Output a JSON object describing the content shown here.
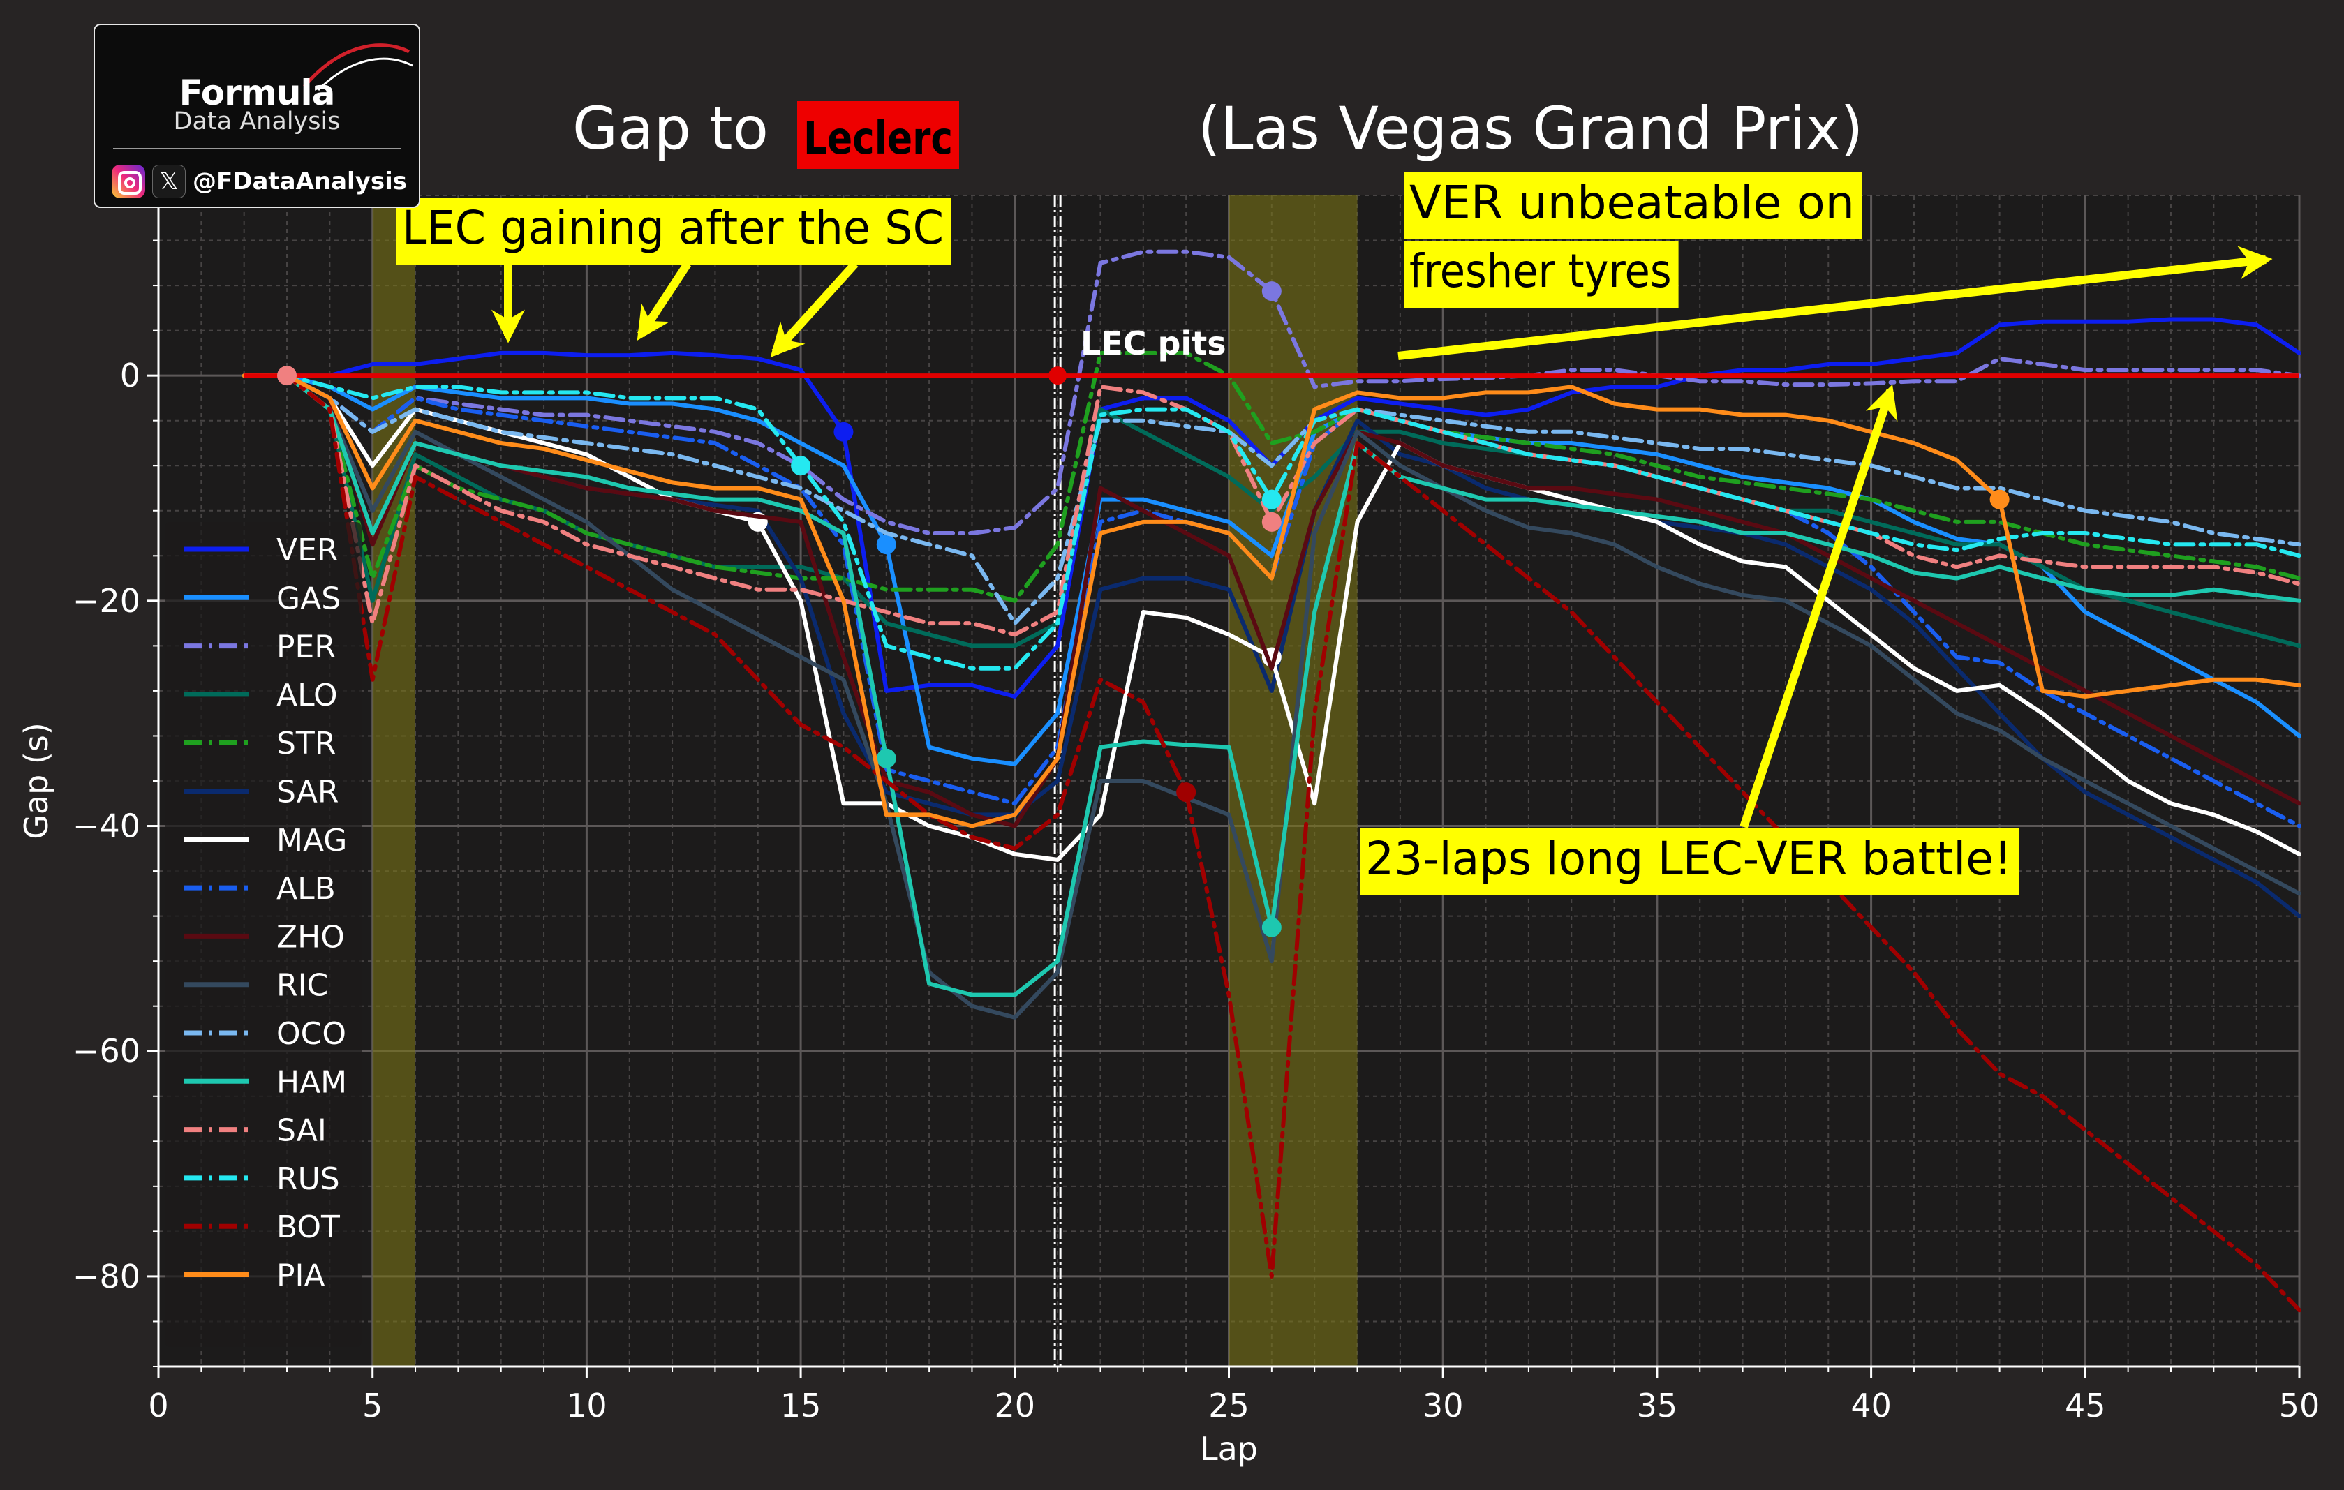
{
  "logo": {
    "title": "Formula",
    "subtitle": "Data Analysis",
    "handle": "@FDataAnalysis",
    "icons": [
      "instagram-icon",
      "x-icon"
    ]
  },
  "chart_data": {
    "type": "line",
    "title_prefix": "Gap to",
    "title_highlight": "Leclerc",
    "title_suffix": "(Las Vegas Grand Prix)",
    "xlabel": "Lap",
    "ylabel": "Gap (s)",
    "xlim": [
      0,
      50
    ],
    "ylim": [
      -88,
      16
    ],
    "xticks": [
      0,
      5,
      10,
      15,
      20,
      25,
      30,
      35,
      40,
      45,
      50
    ],
    "yticks": [
      0,
      -20,
      -40,
      -60,
      -80
    ],
    "grid": true,
    "legend": "left",
    "reference_line": {
      "label": "LEC",
      "value": 0,
      "color": "#e00000"
    },
    "shaded_laps": [
      [
        5,
        6
      ],
      [
        25,
        28
      ]
    ],
    "pit_line_lap": 21,
    "pit_label": "LEC pits",
    "annotations": [
      {
        "text": "LEC gaining after the SC"
      },
      {
        "text": "VER unbeatable on\nfresher tyres"
      },
      {
        "text": "23-laps long LEC-VER battle!"
      }
    ],
    "x": [
      2,
      3,
      4,
      5,
      6,
      7,
      8,
      9,
      10,
      11,
      12,
      13,
      14,
      15,
      16,
      17,
      18,
      19,
      20,
      21,
      22,
      23,
      24,
      25,
      26,
      27,
      28,
      29,
      30,
      31,
      32,
      33,
      34,
      35,
      36,
      37,
      38,
      39,
      40,
      41,
      42,
      43,
      44,
      45,
      46,
      47,
      48,
      49,
      50
    ],
    "series": [
      {
        "name": "VER",
        "color": "#0d1ef0",
        "dash": "solid",
        "pits": [
          16
        ],
        "values": [
          0,
          0,
          0,
          1,
          1,
          1.5,
          2,
          2,
          1.8,
          1.8,
          2,
          1.8,
          1.5,
          0.5,
          -5,
          -28,
          -27.5,
          -27.5,
          -28.5,
          -24,
          -3,
          -2,
          -2,
          -4,
          -8,
          -4,
          -2,
          -2.5,
          -3,
          -3.5,
          -3,
          -1.5,
          -1,
          -1,
          0,
          0.5,
          0.5,
          1,
          1,
          1.5,
          2,
          4.5,
          4.8,
          4.8,
          4.8,
          5,
          5,
          4.5,
          2
        ]
      },
      {
        "name": "GAS",
        "color": "#1a8fff",
        "dash": "solid",
        "pits": [
          17
        ],
        "values": [
          0,
          0,
          -1,
          -3,
          -1,
          -1.5,
          -2,
          -2,
          -2,
          -2.5,
          -2.5,
          -3,
          -4,
          -6,
          -8,
          -15,
          -33,
          -34,
          -34.5,
          -30,
          -11,
          -11,
          -12,
          -13,
          -16,
          -5,
          -3,
          -4,
          -5,
          -5.5,
          -6,
          -6,
          -6.5,
          -7,
          -8,
          -9,
          -9.5,
          -10,
          -11,
          -13,
          -14.5,
          -15,
          -17,
          -21,
          -23,
          -25,
          -27,
          -29,
          -32
        ]
      },
      {
        "name": "PER",
        "color": "#7b77e0",
        "dash": "dashdot",
        "pits": [
          26
        ],
        "values": [
          0,
          0,
          -2,
          -5,
          -2,
          -2.5,
          -3,
          -3.5,
          -3.5,
          -4,
          -4.5,
          -5,
          -6,
          -8,
          -11,
          -13,
          -14,
          -14,
          -13.5,
          -10,
          10,
          11,
          11,
          10.5,
          7.5,
          -1,
          -0.5,
          -0.5,
          -0.3,
          -0.2,
          0,
          0.5,
          0.5,
          0,
          -0.5,
          -0.5,
          -0.8,
          -0.8,
          -0.7,
          -0.5,
          -0.5,
          1.5,
          1,
          0.5,
          0.5,
          0.5,
          0.5,
          0.5,
          0
        ]
      },
      {
        "name": "ALO",
        "color": "#006b5a",
        "dash": "solid",
        "pits": [],
        "values": [
          0,
          0,
          -3,
          -20,
          -7,
          -9,
          -11,
          -12,
          -14,
          -15,
          -16,
          -17,
          -17,
          -17,
          -18,
          -22,
          -23,
          -24,
          -24,
          -22,
          -3,
          -5,
          -7,
          -9,
          -12,
          -9,
          -5,
          -5,
          -6,
          -6.5,
          -7,
          -7.5,
          -8,
          -9,
          -10,
          -11,
          -12,
          -12,
          -13,
          -14,
          -15,
          -15,
          -17,
          -19,
          -20,
          -21,
          -22,
          -23,
          -24
        ]
      },
      {
        "name": "STR",
        "color": "#1fa01f",
        "dash": "dashdot",
        "pits": [],
        "values": [
          0,
          0,
          -3,
          -18,
          -8,
          -10,
          -11,
          -12,
          -14,
          -15,
          -16,
          -17,
          -17.5,
          -18,
          -18,
          -19,
          -19,
          -19,
          -20,
          -15,
          2,
          2,
          2,
          0,
          -6,
          -5,
          -3,
          -4,
          -5,
          -5.5,
          -6,
          -6.5,
          -7,
          -8,
          -9,
          -9.5,
          -10,
          -10.5,
          -11,
          -12,
          -13,
          -13,
          -14,
          -15,
          -15.5,
          -16,
          -16.5,
          -17,
          -18
        ]
      },
      {
        "name": "SAR",
        "color": "#0a2a6e",
        "dash": "solid",
        "pits": [],
        "values": [
          0,
          0,
          -3,
          -14,
          -6,
          -7,
          -8,
          -9,
          -10,
          -10.5,
          -11,
          -11.5,
          -12,
          -18,
          -30,
          -37,
          -38,
          -39,
          -39,
          -36,
          -19,
          -18,
          -18,
          -19,
          -28,
          -12,
          -4,
          -7,
          -8,
          -10,
          -11,
          -11.5,
          -12,
          -13,
          -13.5,
          -14,
          -15,
          -17,
          -19,
          -22,
          -26,
          -30,
          -34,
          -37,
          -39,
          -41,
          -43,
          -45,
          -48
        ]
      },
      {
        "name": "MAG",
        "color": "#ffffff",
        "dash": "solid",
        "pits": [
          14,
          26
        ],
        "values": [
          0,
          0,
          -2,
          -8,
          -3,
          -4,
          -5,
          -6,
          -7,
          -9,
          -11,
          -12,
          -13,
          -20,
          -38,
          -38,
          -40,
          -41,
          -42.5,
          -43,
          -39,
          -21,
          -21.5,
          -23,
          -25,
          -38,
          -13,
          -6,
          -8,
          -9,
          -10,
          -11,
          -12,
          -13,
          -15,
          -16.5,
          -17,
          -20,
          -23,
          -26,
          -28,
          -27.5,
          -30,
          -33,
          -36,
          -38,
          -39,
          -40.5,
          -42.5
        ]
      },
      {
        "name": "ALB",
        "color": "#1a5ef0",
        "dash": "dashdot",
        "pits": [],
        "values": [
          0,
          0,
          -2,
          -5,
          -2,
          -3,
          -3.5,
          -4,
          -4.5,
          -5,
          -5.5,
          -6,
          -8,
          -10,
          -15,
          -35,
          -36,
          -37,
          -38,
          -33,
          -13,
          -12,
          -13,
          -14,
          -18,
          -6,
          -3,
          -4,
          -5,
          -6,
          -7,
          -7.5,
          -8,
          -9,
          -10,
          -11,
          -12,
          -14,
          -17,
          -21,
          -25,
          -25.5,
          -28,
          -30,
          -32,
          -34,
          -36,
          -38,
          -40
        ]
      },
      {
        "name": "ZHO",
        "color": "#5a0a12",
        "dash": "solid",
        "pits": [],
        "values": [
          0,
          0,
          -2,
          -15,
          -6,
          -7,
          -8,
          -9,
          -10,
          -10.5,
          -11,
          -12,
          -12.5,
          -13,
          -25,
          -36,
          -37,
          -39,
          -40,
          -34,
          -10,
          -12,
          -14,
          -16,
          -26,
          -12,
          -5,
          -6,
          -8,
          -9,
          -10,
          -10,
          -10.5,
          -11,
          -12,
          -13,
          -14,
          -16,
          -18,
          -20,
          -22,
          -24,
          -26,
          -28,
          -30,
          -32,
          -34,
          -36,
          -38
        ]
      },
      {
        "name": "RIC",
        "color": "#34495e",
        "dash": "solid",
        "pits": [],
        "values": [
          0,
          0,
          -3,
          -12,
          -5,
          -7,
          -9,
          -11,
          -13,
          -16,
          -19,
          -21,
          -23,
          -25,
          -27,
          -38,
          -53,
          -56,
          -57,
          -53,
          -36,
          -36,
          -37.5,
          -39,
          -52,
          -14,
          -5,
          -8,
          -10,
          -12,
          -13.5,
          -14,
          -15,
          -17,
          -18.5,
          -19.5,
          -20,
          -22,
          -24,
          -27,
          -30,
          -31.5,
          -34,
          -36,
          -38,
          -40,
          -42,
          -44,
          -46
        ]
      },
      {
        "name": "OCO",
        "color": "#7ab8f0",
        "dash": "dashdot",
        "pits": [],
        "values": [
          0,
          0,
          -2,
          -5,
          -3,
          -4,
          -5,
          -5.5,
          -6,
          -6.5,
          -7,
          -8,
          -9,
          -10,
          -12,
          -14,
          -15,
          -16,
          -22,
          -18,
          -4,
          -4,
          -4.5,
          -5,
          -8,
          -4,
          -3,
          -3.5,
          -4,
          -4.5,
          -5,
          -5,
          -5.5,
          -6,
          -6.5,
          -6.5,
          -7,
          -7.5,
          -8,
          -9,
          -10,
          -10,
          -11,
          -12,
          -12.5,
          -13,
          -14,
          -14.5,
          -15
        ]
      },
      {
        "name": "HAM",
        "color": "#1ec8b0",
        "dash": "solid",
        "pits": [
          17,
          26
        ],
        "values": [
          0,
          0,
          -3,
          -14,
          -6,
          -7,
          -8,
          -8.5,
          -9,
          -10,
          -10.5,
          -11,
          -11,
          -12,
          -14,
          -34,
          -54,
          -55,
          -55,
          -52,
          -33,
          -32.5,
          -32.8,
          -33,
          -49,
          -21,
          -6,
          -9,
          -10,
          -11,
          -11,
          -11.5,
          -12,
          -12.5,
          -13,
          -14,
          -14,
          -15,
          -16,
          -17.5,
          -18,
          -17,
          -18,
          -19,
          -19.5,
          -19.5,
          -19,
          -19.5,
          -20
        ]
      },
      {
        "name": "SAI",
        "color": "#f08080",
        "dash": "dashdot",
        "pits": [
          26
        ],
        "values": [
          0,
          0,
          -3,
          -22,
          -8,
          -10,
          -12,
          -13,
          -15,
          -16,
          -17,
          -18,
          -19,
          -19,
          -20,
          -21,
          -22,
          -22,
          -23,
          -21,
          -1,
          -1.5,
          -3,
          -5,
          -13,
          -6,
          -3,
          -4,
          -5,
          -6,
          -7,
          -7.5,
          -8,
          -9,
          -10,
          -11,
          -12,
          -13,
          -14,
          -16,
          -17,
          -16,
          -16.5,
          -17,
          -17,
          -17,
          -17,
          -17.5,
          -18.5
        ]
      },
      {
        "name": "RUS",
        "color": "#25e8f0",
        "dash": "dashdot",
        "pits": [
          15,
          26
        ],
        "values": [
          0,
          0,
          -1,
          -2,
          -1,
          -1,
          -1.5,
          -1.5,
          -1.5,
          -2,
          -2,
          -2,
          -3,
          -8,
          -13,
          -24,
          -25,
          -26,
          -26,
          -22,
          -3.5,
          -3,
          -3,
          -5,
          -11,
          -4,
          -3,
          -4,
          -5,
          -6,
          -7,
          -7.5,
          -8,
          -9,
          -10,
          -11,
          -12,
          -13,
          -14,
          -15,
          -15.5,
          -14.5,
          -14,
          -14,
          -14.5,
          -15,
          -15,
          -15,
          -16
        ]
      },
      {
        "name": "BOT",
        "color": "#a00000",
        "dash": "dashdot",
        "pits": [
          24
        ],
        "values": [
          0,
          0,
          -3,
          -27,
          -9,
          -11,
          -13,
          -15,
          -17,
          -19,
          -21,
          -23,
          -27,
          -31,
          -33,
          -36,
          -39,
          -41,
          -42,
          -39,
          -27,
          -29,
          -37,
          -55,
          -80,
          -30,
          -6,
          -9,
          -12,
          -15,
          -18,
          -21,
          -25,
          -29,
          -33,
          -37,
          -41,
          -45,
          -49,
          -53,
          -58,
          -62,
          -64,
          -67,
          -70,
          -73,
          -76,
          -79,
          -83
        ]
      },
      {
        "name": "PIA",
        "color": "#ff8c1a",
        "dash": "solid",
        "pits": [
          43
        ],
        "values": [
          0,
          0,
          -2,
          -10,
          -4,
          -5,
          -6,
          -6.5,
          -7.5,
          -8.5,
          -9.5,
          -10,
          -10,
          -11,
          -20,
          -39,
          -39,
          -40,
          -39,
          -34,
          -14,
          -13,
          -13,
          -14,
          -18,
          -3,
          -1.5,
          -2,
          -2,
          -1.5,
          -1.5,
          -1,
          -2.5,
          -3,
          -3,
          -3.5,
          -3.5,
          -4,
          -5,
          -6,
          -7.5,
          -11,
          -28,
          -28.5,
          -28,
          -27.5,
          -27,
          -27,
          -27.5
        ]
      }
    ]
  }
}
